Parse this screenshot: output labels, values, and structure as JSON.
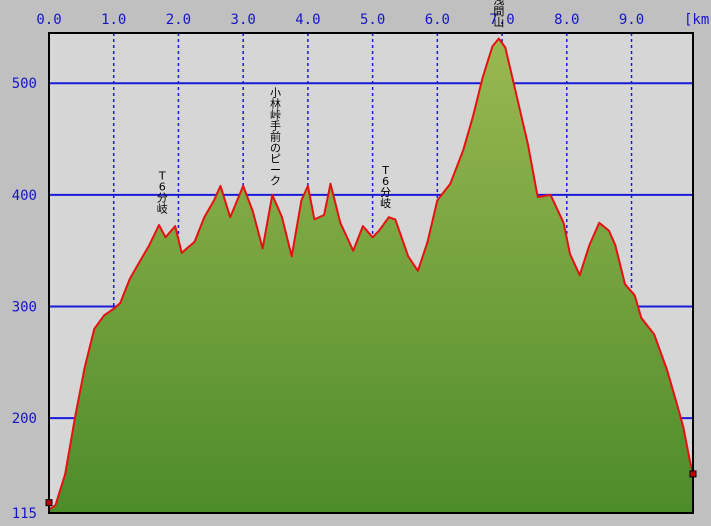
{
  "chart_data": {
    "type": "area",
    "xlabel": "",
    "ylabel": "",
    "x_unit": "[km",
    "xlim": [
      0.0,
      9.95
    ],
    "ylim": [
      115,
      545
    ],
    "x_ticks": [
      {
        "value": 0.0,
        "label": "0.0"
      },
      {
        "value": 1.0,
        "label": "1.0"
      },
      {
        "value": 2.0,
        "label": "2.0"
      },
      {
        "value": 3.0,
        "label": "3.0"
      },
      {
        "value": 4.0,
        "label": "4.0"
      },
      {
        "value": 5.0,
        "label": "5.0"
      },
      {
        "value": 6.0,
        "label": "6.0"
      },
      {
        "value": 7.0,
        "label": "7.0"
      },
      {
        "value": 8.0,
        "label": "8.0"
      },
      {
        "value": 9.0,
        "label": "9.0"
      }
    ],
    "y_ticks": [
      {
        "value": 115,
        "label": "115"
      },
      {
        "value": 200,
        "label": "200"
      },
      {
        "value": 300,
        "label": "300"
      },
      {
        "value": 400,
        "label": "400"
      },
      {
        "value": 500,
        "label": "500"
      }
    ],
    "grid": true,
    "colors": {
      "plot_bg": "#d6d6d6",
      "window_bg": "#c0c0c0",
      "grid": "#1a1ad8",
      "tick_text": "#1515c8",
      "fill_top": "#9ab851",
      "fill_bottom": "#4d8c2a",
      "profile_line": "#e81010",
      "plot_border": "#000000"
    },
    "series": [
      {
        "points": [
          [
            0.0,
            118
          ],
          [
            0.1,
            122
          ],
          [
            0.25,
            150
          ],
          [
            0.4,
            200
          ],
          [
            0.55,
            245
          ],
          [
            0.7,
            280
          ],
          [
            0.85,
            292
          ],
          [
            1.0,
            298
          ],
          [
            1.1,
            303
          ],
          [
            1.25,
            325
          ],
          [
            1.4,
            340
          ],
          [
            1.55,
            355
          ],
          [
            1.7,
            373
          ],
          [
            1.8,
            362
          ],
          [
            1.95,
            372
          ],
          [
            2.05,
            348
          ],
          [
            2.25,
            358
          ],
          [
            2.4,
            380
          ],
          [
            2.55,
            395
          ],
          [
            2.65,
            408
          ],
          [
            2.8,
            380
          ],
          [
            3.0,
            408
          ],
          [
            3.15,
            385
          ],
          [
            3.3,
            352
          ],
          [
            3.45,
            400
          ],
          [
            3.6,
            380
          ],
          [
            3.75,
            345
          ],
          [
            3.9,
            395
          ],
          [
            4.0,
            408
          ],
          [
            4.1,
            378
          ],
          [
            4.25,
            382
          ],
          [
            4.35,
            410
          ],
          [
            4.5,
            375
          ],
          [
            4.7,
            350
          ],
          [
            4.85,
            372
          ],
          [
            5.0,
            362
          ],
          [
            5.1,
            368
          ],
          [
            5.25,
            380
          ],
          [
            5.35,
            378
          ],
          [
            5.55,
            345
          ],
          [
            5.7,
            332
          ],
          [
            5.85,
            358
          ],
          [
            6.0,
            395
          ],
          [
            6.2,
            410
          ],
          [
            6.4,
            440
          ],
          [
            6.55,
            470
          ],
          [
            6.7,
            505
          ],
          [
            6.85,
            533
          ],
          [
            6.95,
            540
          ],
          [
            7.05,
            532
          ],
          [
            7.2,
            495
          ],
          [
            7.4,
            445
          ],
          [
            7.55,
            398
          ],
          [
            7.75,
            400
          ],
          [
            7.95,
            375
          ],
          [
            8.05,
            347
          ],
          [
            8.2,
            328
          ],
          [
            8.35,
            355
          ],
          [
            8.5,
            375
          ],
          [
            8.65,
            368
          ],
          [
            8.75,
            355
          ],
          [
            8.9,
            320
          ],
          [
            9.05,
            310
          ],
          [
            9.15,
            290
          ],
          [
            9.35,
            275
          ],
          [
            9.55,
            243
          ],
          [
            9.7,
            213
          ],
          [
            9.8,
            192
          ],
          [
            9.9,
            162
          ],
          [
            9.95,
            150
          ]
        ]
      }
    ],
    "annotations": [
      {
        "label": "T6分岐",
        "x": 1.75,
        "y": 377
      },
      {
        "label": "小林峠手前のピーク",
        "x": 3.5,
        "y": 402
      },
      {
        "label": "T6分岐",
        "x": 5.2,
        "y": 382
      },
      {
        "label": "浅間山",
        "x": 6.95,
        "y": 544
      }
    ]
  }
}
